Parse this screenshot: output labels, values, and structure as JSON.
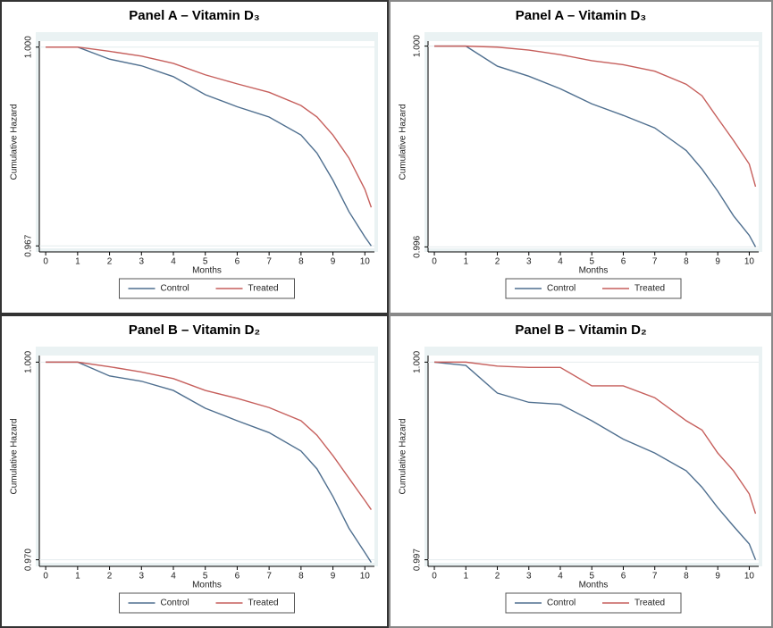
{
  "chart_data": [
    {
      "type": "line",
      "title": "Panel A – Vitamin D₃",
      "xlabel": "Months",
      "ylabel": "Cumulative Hazard",
      "x": [
        0,
        1,
        2,
        3,
        4,
        5,
        6,
        7,
        8,
        8.5,
        9,
        9.5,
        10,
        10.2
      ],
      "xlim": [
        -0.2,
        10.3
      ],
      "xticks": [
        0,
        1,
        2,
        3,
        4,
        5,
        6,
        7,
        8,
        9,
        10
      ],
      "ylim": [
        0.966,
        1.001
      ],
      "yticks": [
        0.967,
        {
          "value": 1,
          "label": "1.000"
        }
      ],
      "series": [
        {
          "name": "Control",
          "color": "#4f6f8f",
          "values": [
            1,
            1,
            0.998,
            0.9969,
            0.9951,
            0.9921,
            0.9901,
            0.9884,
            0.9854,
            0.9824,
            0.9779,
            0.9727,
            0.9685,
            0.967
          ]
        },
        {
          "name": "Treated",
          "color": "#c65f5c",
          "values": [
            1,
            1,
            0.9993,
            0.9985,
            0.9973,
            0.9954,
            0.9939,
            0.9925,
            0.9903,
            0.9884,
            0.9854,
            0.9816,
            0.9764,
            0.9734
          ]
        }
      ]
    },
    {
      "type": "line",
      "title": "Panel A – Vitamin D₃",
      "xlabel": "Months",
      "ylabel": "Cumulative Hazard",
      "x": [
        0,
        1,
        2,
        3,
        4,
        5,
        6,
        7,
        8,
        8.5,
        9,
        9.5,
        10,
        10.2
      ],
      "xlim": [
        -0.2,
        10.3
      ],
      "xticks": [
        0,
        1,
        2,
        3,
        4,
        5,
        6,
        7,
        8,
        9,
        10
      ],
      "ylim": [
        0.9959,
        1.0001
      ],
      "yticks": [
        0.996,
        {
          "value": 1,
          "label": "1.000"
        }
      ],
      "series": [
        {
          "name": "Control",
          "color": "#4f6f8f",
          "values": [
            1,
            1,
            0.9996,
            0.9994,
            0.99915,
            0.99885,
            0.99862,
            0.99837,
            0.99792,
            0.99755,
            0.99711,
            0.99662,
            0.99623,
            0.996
          ]
        },
        {
          "name": "Treated",
          "color": "#c65f5c",
          "values": [
            1,
            1,
            0.99998,
            0.99992,
            0.99983,
            0.99971,
            0.99963,
            0.9995,
            0.99924,
            0.99901,
            0.99856,
            0.99812,
            0.99765,
            0.9972
          ]
        }
      ]
    },
    {
      "type": "line",
      "title": "Panel B – Vitamin D₂",
      "xlabel": "Months",
      "ylabel": "Cumulative Hazard",
      "x": [
        0,
        1,
        2,
        3,
        4,
        5,
        6,
        7,
        8,
        8.5,
        9,
        9.5,
        10,
        10.2
      ],
      "xlim": [
        -0.2,
        10.3
      ],
      "xticks": [
        0,
        1,
        2,
        3,
        4,
        5,
        6,
        7,
        8,
        9,
        10
      ],
      "ylim": [
        0.969,
        1.001
      ],
      "yticks": [
        {
          "value": 0.97,
          "label": "0.970"
        },
        {
          "value": 1,
          "label": "1.000"
        }
      ],
      "series": [
        {
          "name": "Control",
          "color": "#4f6f8f",
          "values": [
            1,
            1,
            0.9979,
            0.9971,
            0.9957,
            0.993,
            0.9911,
            0.9893,
            0.9865,
            0.9838,
            0.9796,
            0.9748,
            0.9711,
            0.9696
          ]
        },
        {
          "name": "Treated",
          "color": "#c65f5c",
          "values": [
            1,
            1,
            0.9993,
            0.9985,
            0.9975,
            0.9957,
            0.9945,
            0.9931,
            0.9911,
            0.9889,
            0.9858,
            0.9824,
            0.979,
            0.9776
          ]
        }
      ]
    },
    {
      "type": "line",
      "title": "Panel B – Vitamin D₂",
      "xlabel": "Months",
      "ylabel": "Cumulative Hazard",
      "x": [
        0,
        1,
        2,
        3,
        4,
        5,
        6,
        7,
        8,
        8.5,
        9,
        9.5,
        10,
        10.2
      ],
      "xlim": [
        -0.2,
        10.3
      ],
      "xticks": [
        0,
        1,
        2,
        3,
        4,
        5,
        6,
        7,
        8,
        9,
        10
      ],
      "ylim": [
        0.9969,
        1.0001
      ],
      "yticks": [
        0.997,
        {
          "value": 1,
          "label": "1.000"
        }
      ],
      "series": [
        {
          "name": "Control",
          "color": "#4f6f8f",
          "values": [
            1,
            0.99995,
            0.99953,
            0.99939,
            0.99936,
            0.99911,
            0.99883,
            0.99862,
            0.99835,
            0.9981,
            0.99779,
            0.99751,
            0.99724,
            0.997
          ]
        },
        {
          "name": "Treated",
          "color": "#c65f5c",
          "values": [
            1,
            1,
            0.99994,
            0.99992,
            0.99992,
            0.99964,
            0.99964,
            0.99946,
            0.99911,
            0.99897,
            0.99862,
            0.99835,
            0.998,
            0.9977
          ]
        }
      ]
    }
  ]
}
